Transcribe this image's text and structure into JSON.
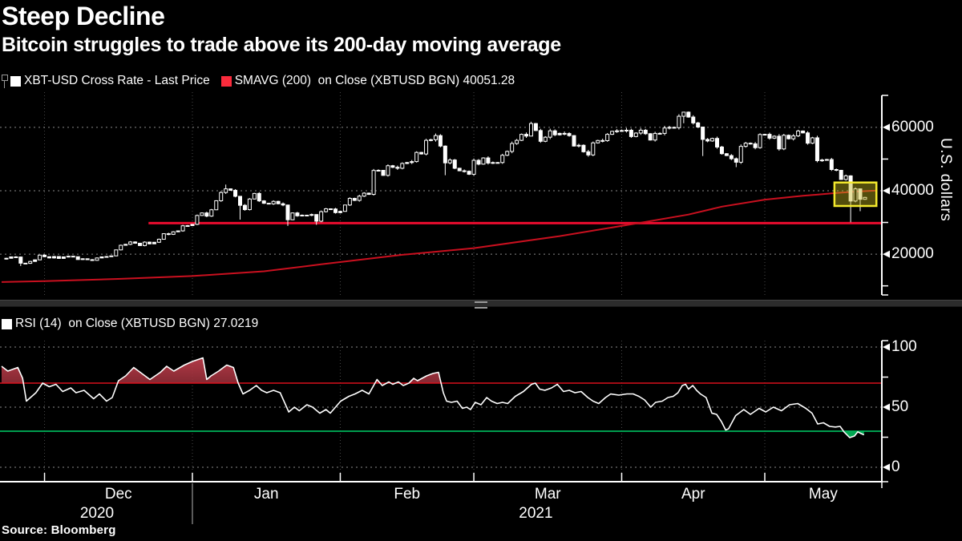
{
  "header": {
    "title": "Steep Decline",
    "subtitle": "Bitcoin struggles to trade above its 200-day moving average"
  },
  "source": "Source: Bloomberg",
  "price_panel": {
    "legend_last_price": "XBT-USD Cross Rate - Last Price",
    "legend_smavg": "SMAVG (200)  on Close (XBTUSD BGN) 40051.28",
    "axis_label": "U.S. dollars",
    "swatch_last_price_color": "#ffffff",
    "swatch_smavg_color": "#fa2b3c"
  },
  "rsi_panel": {
    "legend": "RSI (14)  on Close (XBTUSD BGN) 27.0219",
    "swatch_color": "#ffffff"
  },
  "chart_data": [
    {
      "type": "candlestick",
      "title": "XBT-USD Cross Rate - Last Price with SMAVG(200)",
      "ylabel": "U.S. dollars",
      "start_date": "2020-11-22",
      "ylim": [
        7500,
        70500
      ],
      "yticks": [
        20000,
        40000,
        60000
      ],
      "minor_yticks": [
        10000,
        30000,
        50000
      ],
      "grid": true,
      "month_starts": [
        {
          "label": "Dec",
          "day": 9
        },
        {
          "label": "Jan",
          "day": 40
        },
        {
          "label": "Feb",
          "day": 71
        },
        {
          "label": "Mar",
          "day": 99
        },
        {
          "label": "Apr",
          "day": 130
        },
        {
          "label": "May",
          "day": 160
        }
      ],
      "x_end_day": 184.5,
      "years": [
        {
          "label": "2020",
          "center_day": 20
        },
        {
          "label": "2021",
          "center_day": 112
        }
      ],
      "year_separator_day": 40,
      "last_price_closes": [
        18450,
        18700,
        19150,
        19100,
        17150,
        17100,
        17700,
        18200,
        19700,
        19200,
        18800,
        19250,
        18650,
        19150,
        19350,
        19200,
        18300,
        18550,
        18250,
        18050,
        18800,
        19150,
        19250,
        19450,
        21350,
        22800,
        23100,
        23850,
        23450,
        22700,
        23800,
        23250,
        23750,
        24700,
        26450,
        26250,
        27050,
        27350,
        28950,
        29000,
        29400,
        32200,
        33000,
        32000,
        34000,
        36850,
        39450,
        40600,
        40150,
        38250,
        35400,
        34050,
        37400,
        39150,
        36800,
        36050,
        35850,
        36650,
        35900,
        35500,
        30850,
        33000,
        32100,
        32300,
        32250,
        32500,
        30400,
        33400,
        34300,
        34250,
        33100,
        33500,
        35500,
        37600,
        36950,
        38300,
        39250,
        38850,
        46400,
        46450,
        44850,
        47900,
        47400,
        47100,
        48600,
        48900,
        49200,
        52100,
        51600,
        55900,
        56100,
        57400,
        54100,
        48800,
        49700,
        47100,
        46300,
        46150,
        45200,
        49600,
        48400,
        50350,
        48750,
        48900,
        48900,
        51200,
        52400,
        54900,
        55900,
        57800,
        57250,
        61200,
        59000,
        55600,
        56900,
        58900,
        57650,
        58100,
        58050,
        57400,
        54100,
        54350,
        52300,
        51300,
        55100,
        55850,
        55800,
        57800,
        58750,
        58900,
        59000,
        59100,
        57100,
        58200,
        59100,
        58000,
        56000,
        58100,
        58100,
        59800,
        60000,
        59900,
        63500,
        64800,
        63250,
        61400,
        60100,
        56200,
        55700,
        56500,
        53800,
        51700,
        51100,
        50100,
        49000,
        54000,
        55000,
        54800,
        53600,
        57750,
        57800,
        56600,
        57200,
        53200,
        57500,
        56400,
        57300,
        58850,
        58250,
        55000,
        56700,
        49500,
        49700,
        49850,
        46700,
        46450,
        43550,
        44700,
        36750,
        40600,
        37300,
        37900
      ],
      "wick_overrides": {
        "4": [
          19250,
          16250
        ],
        "47": [
          41950,
          39000
        ],
        "50": [
          38300,
          30900
        ],
        "60": [
          35600,
          28900
        ],
        "66": [
          32200,
          29250
        ],
        "93": [
          54300,
          44900
        ],
        "111": [
          61780,
          58500
        ],
        "143": [
          64850,
          61300
        ],
        "147": [
          57600,
          50950
        ],
        "154": [
          50500,
          47450
        ],
        "178": [
          44900,
          30050
        ],
        "180": [
          40700,
          33550
        ]
      },
      "smavg_200": [
        [
          0,
          11200
        ],
        [
          9,
          11500
        ],
        [
          25,
          12200
        ],
        [
          40,
          13100
        ],
        [
          55,
          14600
        ],
        [
          67,
          16800
        ],
        [
          84,
          19800
        ],
        [
          99,
          21900
        ],
        [
          117,
          25700
        ],
        [
          134,
          29900
        ],
        [
          144,
          32500
        ],
        [
          151,
          35000
        ],
        [
          160,
          37200
        ],
        [
          168,
          38400
        ],
        [
          175,
          39300
        ],
        [
          180,
          39800
        ],
        [
          183.5,
          40051.28
        ]
      ],
      "smavg_last": 40051.28,
      "support_line_value": 29800,
      "support_line_start_day": 30.8,
      "highlight_box": {
        "day_start": 174.6,
        "day_end": 183.4,
        "low": 35200,
        "high": 42600
      },
      "colors": {
        "candle": "#ffffff",
        "smavg": "#c9101f",
        "support": "#ea0c2e",
        "highlight_border": "#f4ea2d",
        "highlight_fill": "rgba(197,183,28,0.42)",
        "grid_h": "#8a8a8a",
        "grid_v": "#474747",
        "axis": "#ffffff"
      }
    },
    {
      "type": "line",
      "name": "RSI (14) on Close (XBTUSD BGN)",
      "last_value": 27.0219,
      "ylim": [
        -12,
        108
      ],
      "yticks": [
        0,
        50,
        100
      ],
      "minor_yticks": [
        25,
        75
      ],
      "overbought": 70,
      "oversold": 30,
      "grid": true,
      "points": [
        [
          0,
          84
        ],
        [
          1.3,
          80
        ],
        [
          3.4,
          83
        ],
        [
          4.4,
          74
        ],
        [
          5.2,
          55
        ],
        [
          7.2,
          62
        ],
        [
          8.6,
          70
        ],
        [
          10,
          67
        ],
        [
          11.4,
          69
        ],
        [
          12.8,
          63
        ],
        [
          14.5,
          66
        ],
        [
          15.6,
          62
        ],
        [
          17.3,
          64
        ],
        [
          19.3,
          57
        ],
        [
          20.5,
          61
        ],
        [
          22,
          55
        ],
        [
          23.2,
          58
        ],
        [
          24.5,
          72
        ],
        [
          26,
          76
        ],
        [
          27.7,
          83
        ],
        [
          29.4,
          78
        ],
        [
          31.1,
          73
        ],
        [
          33.3,
          79
        ],
        [
          34.6,
          84
        ],
        [
          36.1,
          80
        ],
        [
          38.3,
          85
        ],
        [
          40,
          88
        ],
        [
          42.2,
          91
        ],
        [
          43,
          73
        ],
        [
          43.9,
          76
        ],
        [
          45.5,
          80
        ],
        [
          47.2,
          85
        ],
        [
          48.6,
          83
        ],
        [
          49.6,
          70
        ],
        [
          50.6,
          61
        ],
        [
          52,
          64
        ],
        [
          53.4,
          68
        ],
        [
          54.5,
          64
        ],
        [
          55.6,
          62
        ],
        [
          57,
          64
        ],
        [
          58.4,
          62
        ],
        [
          60.2,
          46
        ],
        [
          61.4,
          50
        ],
        [
          62.4,
          47
        ],
        [
          64,
          52
        ],
        [
          65.2,
          50
        ],
        [
          66.7,
          45
        ],
        [
          68,
          48
        ],
        [
          68.9,
          45
        ],
        [
          70,
          50
        ],
        [
          71.1,
          55
        ],
        [
          72.8,
          59
        ],
        [
          74.1,
          61
        ],
        [
          75.6,
          64
        ],
        [
          77,
          61
        ],
        [
          78.7,
          73
        ],
        [
          79.8,
          68
        ],
        [
          81.2,
          71
        ],
        [
          82,
          69
        ],
        [
          83.2,
          71
        ],
        [
          84.2,
          68
        ],
        [
          85.4,
          70
        ],
        [
          86.4,
          74
        ],
        [
          87.2,
          72
        ],
        [
          89.1,
          76
        ],
        [
          90.4,
          78
        ],
        [
          91.6,
          79
        ],
        [
          92.6,
          62
        ],
        [
          93.3,
          55
        ],
        [
          94.3,
          54
        ],
        [
          95.5,
          55
        ],
        [
          96.6,
          49
        ],
        [
          97.5,
          50
        ],
        [
          98.3,
          48
        ],
        [
          99.3,
          54
        ],
        [
          100.5,
          52
        ],
        [
          101.7,
          58
        ],
        [
          102.7,
          55
        ],
        [
          103.9,
          53
        ],
        [
          105,
          54
        ],
        [
          106.1,
          53
        ],
        [
          107.7,
          59
        ],
        [
          109.4,
          63
        ],
        [
          111.1,
          69
        ],
        [
          111.9,
          70
        ],
        [
          112.8,
          65
        ],
        [
          113.9,
          64
        ],
        [
          115.3,
          66
        ],
        [
          116.5,
          69
        ],
        [
          117.8,
          63
        ],
        [
          119,
          64
        ],
        [
          120.2,
          62
        ],
        [
          121.5,
          63
        ],
        [
          122.9,
          58
        ],
        [
          124,
          55
        ],
        [
          125.2,
          53
        ],
        [
          126.6,
          58
        ],
        [
          127.7,
          61
        ],
        [
          129.4,
          60
        ],
        [
          131.1,
          61
        ],
        [
          132.4,
          61
        ],
        [
          133.6,
          59
        ],
        [
          134.8,
          56
        ],
        [
          136.1,
          50
        ],
        [
          137.1,
          54
        ],
        [
          138.5,
          55
        ],
        [
          139.7,
          58
        ],
        [
          140.8,
          59
        ],
        [
          141.8,
          62
        ],
        [
          142.7,
          68
        ],
        [
          143.4,
          69
        ],
        [
          144,
          65
        ],
        [
          144.9,
          68
        ],
        [
          145.7,
          64
        ],
        [
          146.5,
          61
        ],
        [
          147.7,
          58
        ],
        [
          148.9,
          45
        ],
        [
          149.9,
          44
        ],
        [
          150.9,
          38
        ],
        [
          151.8,
          31
        ],
        [
          152.4,
          32
        ],
        [
          153.9,
          43
        ],
        [
          155.6,
          48
        ],
        [
          157,
          44
        ],
        [
          158.8,
          49
        ],
        [
          160.2,
          46
        ],
        [
          161.8,
          50
        ],
        [
          163.5,
          47
        ],
        [
          165.2,
          52
        ],
        [
          166.9,
          53
        ],
        [
          168.6,
          49
        ],
        [
          169.9,
          45
        ],
        [
          171.1,
          36
        ],
        [
          172.3,
          37
        ],
        [
          173.6,
          34
        ],
        [
          174.8,
          33.5
        ],
        [
          175.8,
          34
        ],
        [
          176.6,
          29.5
        ],
        [
          177.8,
          24.7
        ],
        [
          178.8,
          26
        ],
        [
          179.5,
          29.5
        ],
        [
          180.2,
          28
        ],
        [
          180.8,
          27.02
        ]
      ],
      "colors": {
        "line": "#ffffff",
        "overbought_line": "#d8101c",
        "oversold_line": "#00b359",
        "overbought_fill_top": "#c4404e",
        "overbought_fill_bottom": "#2c0508",
        "oversold_fill": "#00a651"
      }
    }
  ]
}
